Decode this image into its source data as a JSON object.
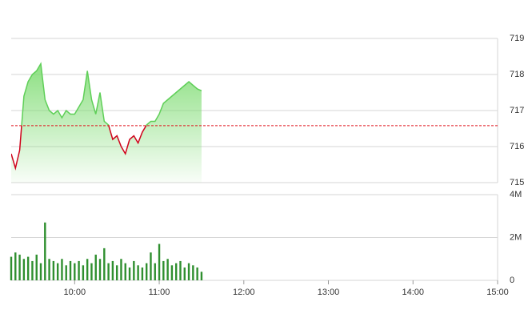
{
  "chart_data": [
    {
      "type": "line",
      "x": [
        "09:15",
        "09:18",
        "09:21",
        "09:24",
        "09:27",
        "09:30",
        "09:33",
        "09:36",
        "09:39",
        "09:42",
        "09:45",
        "09:48",
        "09:51",
        "09:54",
        "09:57",
        "10:00",
        "10:03",
        "10:06",
        "10:09",
        "10:12",
        "10:15",
        "10:18",
        "10:21",
        "10:24",
        "10:27",
        "10:30",
        "10:33",
        "10:36",
        "10:39",
        "10:42",
        "10:45",
        "10:48",
        "10:51",
        "10:54",
        "10:57",
        "11:00",
        "11:03",
        "11:06",
        "11:09",
        "11:12",
        "11:15",
        "11:18",
        "11:21",
        "11:24",
        "11:27",
        "11:30"
      ],
      "values": [
        715.8,
        715.4,
        715.9,
        717.4,
        717.8,
        718.0,
        718.1,
        718.3,
        717.3,
        717.0,
        716.9,
        717.0,
        716.8,
        717.0,
        716.9,
        716.9,
        717.1,
        717.3,
        718.1,
        717.3,
        716.9,
        717.5,
        716.7,
        716.6,
        716.2,
        716.3,
        716.0,
        715.8,
        716.2,
        716.3,
        716.1,
        716.4,
        716.6,
        716.7,
        716.7,
        716.9,
        717.2,
        717.3,
        717.4,
        717.5,
        717.6,
        717.7,
        717.8,
        717.7,
        717.6,
        717.55
      ],
      "reference": 716.58,
      "up_color": "#5fcf58",
      "down_color": "#d0021b",
      "reference_color": "#e0101a",
      "xlim": [
        "09:15",
        "15:00"
      ],
      "ylim": [
        715,
        719
      ],
      "yticks": [
        715,
        716,
        717,
        718,
        719
      ],
      "grid": true
    },
    {
      "type": "bar",
      "x": [
        "09:15",
        "09:18",
        "09:21",
        "09:24",
        "09:27",
        "09:30",
        "09:33",
        "09:36",
        "09:39",
        "09:42",
        "09:45",
        "09:48",
        "09:51",
        "09:54",
        "09:57",
        "10:00",
        "10:03",
        "10:06",
        "10:09",
        "10:12",
        "10:15",
        "10:18",
        "10:21",
        "10:24",
        "10:27",
        "10:30",
        "10:33",
        "10:36",
        "10:39",
        "10:42",
        "10:45",
        "10:48",
        "10:51",
        "10:54",
        "10:57",
        "11:00",
        "11:03",
        "11:06",
        "11:09",
        "11:12",
        "11:15",
        "11:18",
        "11:21",
        "11:24",
        "11:27",
        "11:30"
      ],
      "values": [
        1.1,
        1.3,
        1.2,
        1.0,
        1.1,
        0.9,
        1.2,
        0.8,
        2.7,
        1.0,
        0.9,
        0.8,
        1.0,
        0.7,
        0.9,
        0.8,
        0.9,
        0.7,
        1.0,
        0.8,
        1.2,
        1.0,
        1.5,
        0.8,
        0.9,
        0.7,
        1.0,
        0.8,
        0.6,
        0.9,
        0.7,
        0.6,
        0.8,
        1.3,
        0.8,
        1.7,
        0.9,
        1.0,
        0.7,
        0.8,
        0.9,
        0.6,
        0.8,
        0.7,
        0.6,
        0.4
      ],
      "color": "#2f8f2f",
      "xlim": [
        "09:15",
        "15:00"
      ],
      "xticks": [
        "10:00",
        "11:00",
        "12:00",
        "13:00",
        "14:00",
        "15:00"
      ],
      "ylim": [
        0,
        4
      ],
      "yticks": [
        0,
        {
          "value": 2,
          "label": "2M"
        },
        {
          "value": 4,
          "label": "4M"
        }
      ],
      "grid": true
    }
  ]
}
